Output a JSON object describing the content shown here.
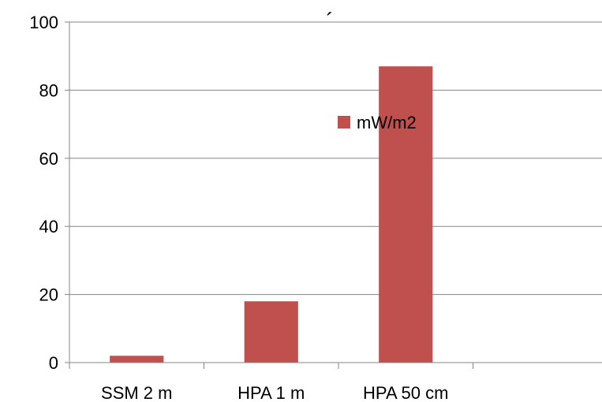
{
  "chart_data": {
    "type": "bar",
    "title": "´",
    "categories": [
      "SSM 2 m",
      "HPA 1 m",
      "HPA 50 cm",
      ""
    ],
    "series": [
      {
        "name": "mW/m2",
        "values": [
          2,
          18,
          87,
          null
        ],
        "color": "#c0504d"
      }
    ],
    "ylim": [
      0,
      100
    ],
    "yticks": [
      0,
      20,
      40,
      60,
      80,
      100
    ],
    "grid": true,
    "legend_position": "inside-top-center"
  }
}
